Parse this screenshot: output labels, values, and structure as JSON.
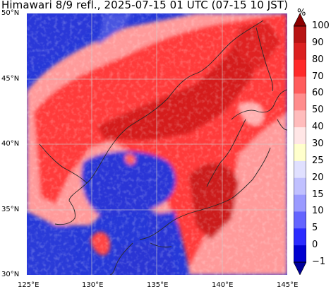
{
  "title": "Himawari 8/9 refl., 2025-07-15 01 UTC (07-15 10 JST)",
  "map": {
    "lat_labels": [
      "50°N",
      "45°N",
      "40°N",
      "35°N",
      "30°N"
    ],
    "lon_labels": [
      "125°E",
      "130°E",
      "135°E",
      "140°E",
      "145°E"
    ],
    "extent": {
      "lon_min": 125,
      "lon_max": 145,
      "lat_min": 30,
      "lat_max": 50
    },
    "background_color": "#2638d8"
  },
  "colorbar": {
    "unit": "%",
    "levels": [
      "100",
      "90",
      "80",
      "70",
      "60",
      "50",
      "40",
      "30",
      "25",
      "20",
      "15",
      "10",
      "5",
      "0",
      "−1"
    ],
    "colors": [
      "#8b0000",
      "#b81414",
      "#dc2020",
      "#ff2a2a",
      "#ff5c5c",
      "#ff8c8c",
      "#ffbcbc",
      "#ffe6e6",
      "#ffffcc",
      "#e0e0ff",
      "#c0c0ff",
      "#9a9aff",
      "#6464ff",
      "#2b2bff",
      "#0000d0",
      "#00009a"
    ]
  }
}
